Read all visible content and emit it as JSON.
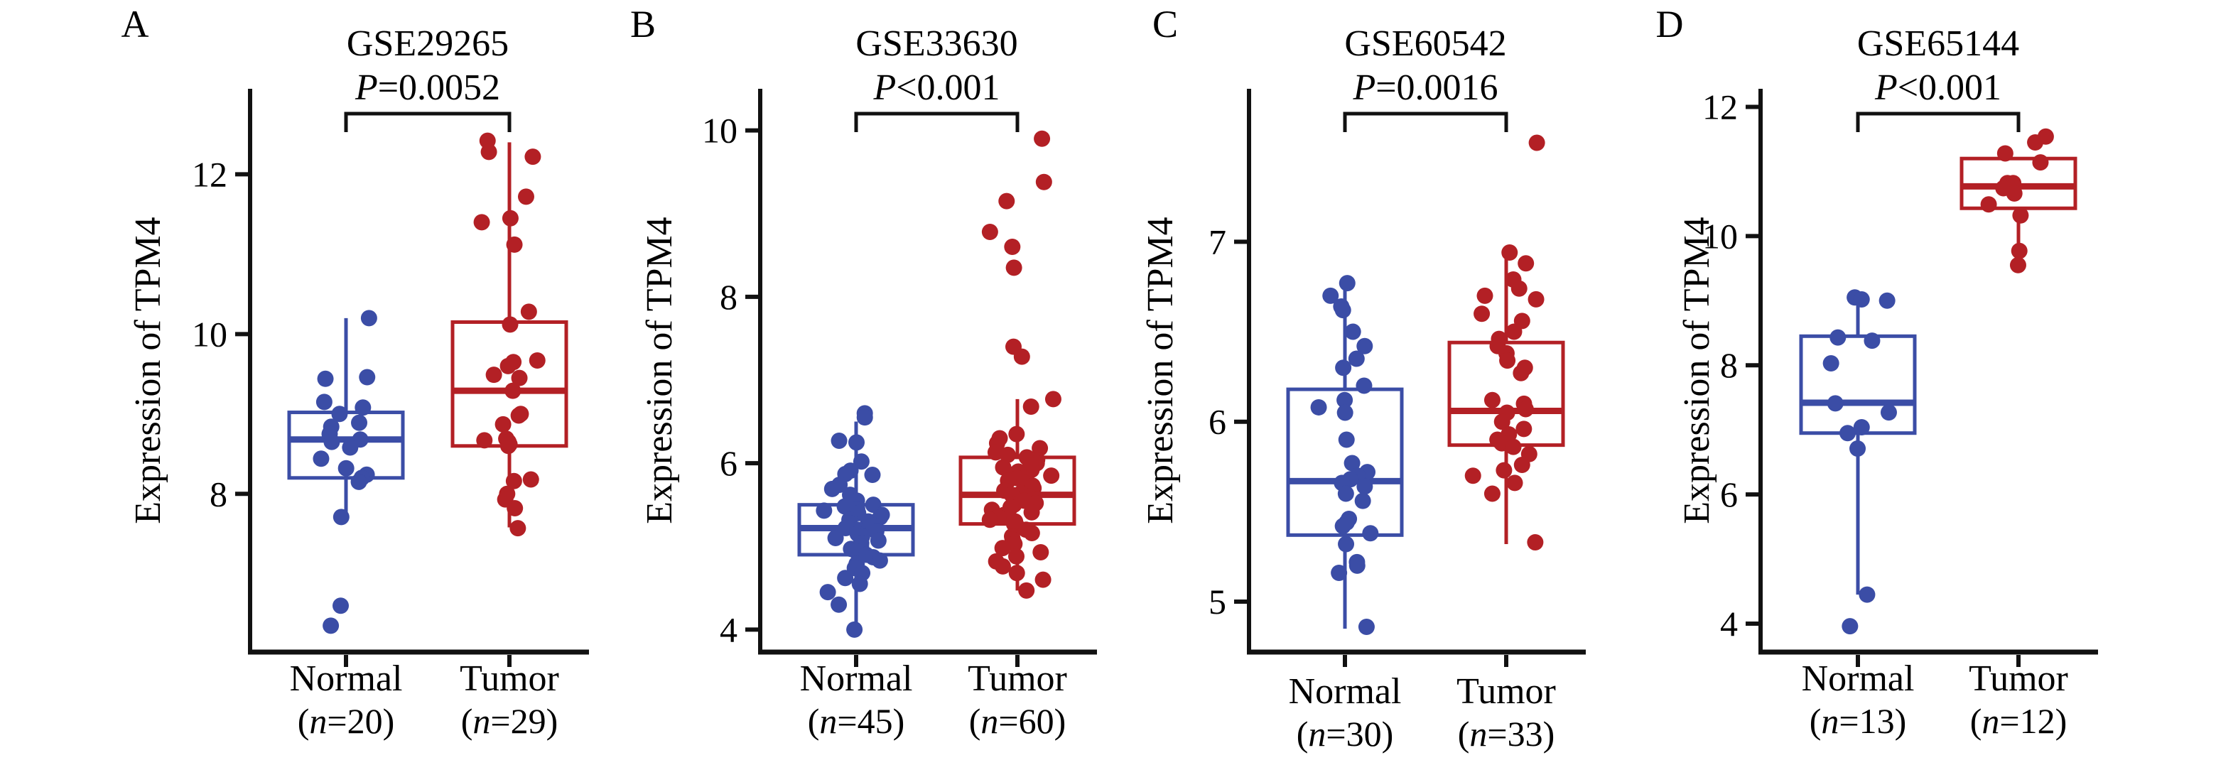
{
  "figure": {
    "description": "Four box-and-jitter plots comparing TPM4 expression between Normal and Tumor samples in four GEO datasets",
    "colors": {
      "normal_blue": "#3b4da6",
      "tumor_red": "#b32025",
      "axis_black": "#111111",
      "background": "#ffffff"
    }
  },
  "chart_data": [
    {
      "panel_label": "A",
      "type": "boxplot-jitter",
      "title": "GSE29265",
      "p_value": "P=0.0052",
      "ylabel": "Expression of TPM4",
      "ylim": [
        6.02,
        13.07
      ],
      "yticks": [
        8,
        10,
        12
      ],
      "categories": [
        "Normal",
        "Tumor"
      ],
      "groups": [
        {
          "name": "Normal",
          "n": 20,
          "n_label": "(n=20)",
          "role": "normal",
          "box": {
            "whisker_low": 7.72,
            "q1": 8.2,
            "median": 8.68,
            "q3": 9.02,
            "whisker_high": 10.2
          },
          "points": [
            10.2,
            9.46,
            9.44,
            9.15,
            9.08,
            9.0,
            8.89,
            8.84,
            8.75,
            8.68,
            8.65,
            8.58,
            8.44,
            8.32,
            8.24,
            8.2,
            8.15,
            7.71,
            6.6,
            6.35
          ]
        },
        {
          "name": "Tumor",
          "n": 29,
          "n_label": "(n=29)",
          "role": "tumor",
          "box": {
            "whisker_low": 7.58,
            "q1": 8.6,
            "median": 9.29,
            "q3": 10.15,
            "whisker_high": 12.4
          },
          "points": [
            12.42,
            12.28,
            12.22,
            11.72,
            11.45,
            11.4,
            11.12,
            10.28,
            10.12,
            9.67,
            9.65,
            9.6,
            9.49,
            9.45,
            9.29,
            9.0,
            8.98,
            8.87,
            8.69,
            8.67,
            8.65,
            8.62,
            8.6,
            8.18,
            8.16,
            8.0,
            7.93,
            7.82,
            7.57
          ]
        }
      ]
    },
    {
      "panel_label": "B",
      "type": "boxplot-jitter",
      "title": "GSE33630",
      "p_value": "P<0.001",
      "ylabel": "Expression of TPM4",
      "ylim": [
        3.73,
        10.5
      ],
      "yticks": [
        4,
        6,
        8,
        10
      ],
      "categories": [
        "Normal",
        "Tumor"
      ],
      "groups": [
        {
          "name": "Normal",
          "n": 45,
          "n_label": "(n=45)",
          "role": "normal",
          "box": {
            "whisker_low": 4.0,
            "q1": 4.9,
            "median": 5.22,
            "q3": 5.5,
            "whisker_high": 6.5
          },
          "points": [
            6.6,
            6.55,
            6.27,
            6.25,
            6.02,
            5.91,
            5.87,
            5.86,
            5.74,
            5.69,
            5.62,
            5.55,
            5.5,
            5.48,
            5.45,
            5.43,
            5.4,
            5.38,
            5.35,
            5.32,
            5.3,
            5.28,
            5.25,
            5.22,
            5.2,
            5.18,
            5.15,
            5.12,
            5.1,
            5.07,
            5.04,
            5.0,
            4.97,
            4.94,
            4.9,
            4.87,
            4.83,
            4.79,
            4.74,
            4.68,
            4.62,
            4.55,
            4.45,
            4.3,
            4.0
          ]
        },
        {
          "name": "Tumor",
          "n": 60,
          "n_label": "(n=60)",
          "role": "tumor",
          "box": {
            "whisker_low": 4.47,
            "q1": 5.27,
            "median": 5.62,
            "q3": 6.07,
            "whisker_high": 6.77
          },
          "points": [
            9.9,
            9.38,
            9.15,
            8.78,
            8.6,
            8.35,
            7.4,
            7.28,
            6.77,
            6.68,
            6.35,
            6.3,
            6.24,
            6.18,
            6.13,
            6.1,
            6.07,
            6.04,
            6.0,
            5.97,
            5.95,
            5.92,
            5.9,
            5.87,
            5.85,
            5.82,
            5.79,
            5.76,
            5.73,
            5.7,
            5.67,
            5.64,
            5.62,
            5.6,
            5.57,
            5.55,
            5.52,
            5.5,
            5.47,
            5.44,
            5.41,
            5.38,
            5.35,
            5.32,
            5.3,
            5.27,
            5.24,
            5.2,
            5.16,
            5.12,
            5.08,
            5.03,
            4.98,
            4.93,
            4.88,
            4.82,
            4.76,
            4.68,
            4.6,
            4.47
          ]
        }
      ]
    },
    {
      "panel_label": "C",
      "type": "boxplot-jitter",
      "title": "GSE60542",
      "p_value": "P=0.0016",
      "ylabel": "Expression of TPM4",
      "ylim": [
        4.72,
        7.85
      ],
      "yticks": [
        5,
        6,
        7
      ],
      "categories": [
        "Normal",
        "Tumor"
      ],
      "groups": [
        {
          "name": "Normal",
          "n": 30,
          "n_label": "(n=30)",
          "role": "normal",
          "box": {
            "whisker_low": 4.85,
            "q1": 5.37,
            "median": 5.67,
            "q3": 6.18,
            "whisker_high": 6.77
          },
          "points": [
            6.77,
            6.7,
            6.64,
            6.62,
            6.5,
            6.42,
            6.35,
            6.3,
            6.2,
            6.12,
            6.08,
            6.05,
            5.9,
            5.77,
            5.72,
            5.7,
            5.68,
            5.66,
            5.64,
            5.6,
            5.56,
            5.46,
            5.44,
            5.42,
            5.38,
            5.32,
            5.22,
            5.2,
            5.16,
            4.86
          ]
        },
        {
          "name": "Tumor",
          "n": 33,
          "n_label": "(n=33)",
          "role": "tumor",
          "box": {
            "whisker_low": 5.32,
            "q1": 5.87,
            "median": 6.06,
            "q3": 6.44,
            "whisker_high": 6.95
          },
          "points": [
            7.55,
            6.94,
            6.88,
            6.79,
            6.74,
            6.7,
            6.68,
            6.6,
            6.56,
            6.5,
            6.46,
            6.42,
            6.38,
            6.34,
            6.3,
            6.27,
            6.12,
            6.1,
            6.07,
            6.05,
            6.0,
            5.96,
            5.93,
            5.9,
            5.88,
            5.86,
            5.82,
            5.76,
            5.73,
            5.7,
            5.66,
            5.6,
            5.33
          ]
        }
      ]
    },
    {
      "panel_label": "D",
      "type": "boxplot-jitter",
      "title": "GSE65144",
      "p_value": "P<0.001",
      "ylabel": "Expression of TPM4",
      "ylim": [
        3.56,
        12.28
      ],
      "yticks": [
        4,
        6,
        8,
        10,
        12
      ],
      "categories": [
        "Normal",
        "Tumor"
      ],
      "groups": [
        {
          "name": "Normal",
          "n": 13,
          "n_label": "(n=13)",
          "role": "normal",
          "box": {
            "whisker_low": 4.45,
            "q1": 6.95,
            "median": 7.42,
            "q3": 8.45,
            "whisker_high": 9.1
          },
          "points": [
            9.05,
            9.02,
            9.0,
            8.43,
            8.38,
            8.03,
            7.41,
            7.27,
            7.04,
            6.95,
            6.71,
            4.45,
            3.96
          ]
        },
        {
          "name": "Tumor",
          "n": 12,
          "n_label": "(n=12)",
          "role": "tumor",
          "box": {
            "whisker_low": 9.6,
            "q1": 10.43,
            "median": 10.77,
            "q3": 11.2,
            "whisker_high": 11.2
          },
          "points": [
            11.54,
            11.45,
            11.28,
            11.14,
            10.82,
            10.82,
            10.74,
            10.66,
            10.49,
            10.32,
            9.77,
            9.55
          ]
        }
      ]
    }
  ]
}
